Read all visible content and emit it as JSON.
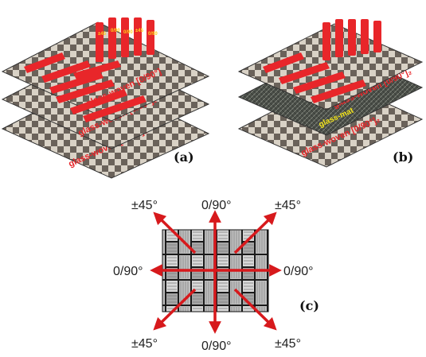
{
  "panels": {
    "a": {
      "label": "(a)",
      "layer_labels": [
        "glass-woven [0/90°]₂",
        "glass-woven [0/90°]₂"
      ]
    },
    "b": {
      "label": "(b)",
      "layer_labels": [
        "glass-woven [0/90°]₂",
        "glass-woven [0/90°]₂"
      ],
      "mat_label": "glass-mat"
    },
    "c": {
      "label": "(c)",
      "angles": {
        "top_left": "±45°",
        "top": "0/90°",
        "top_right": "±45°",
        "left": "0/90°",
        "right": "0/90°",
        "bottom_left": "±45°",
        "bottom": "0/90°",
        "bottom_right": "±45°"
      }
    }
  },
  "colors": {
    "specimen_red": "#e8262a",
    "specimen_text": "#ffd11a",
    "arrow_red": "#d7191c",
    "mat_label": "#f0e21a"
  }
}
